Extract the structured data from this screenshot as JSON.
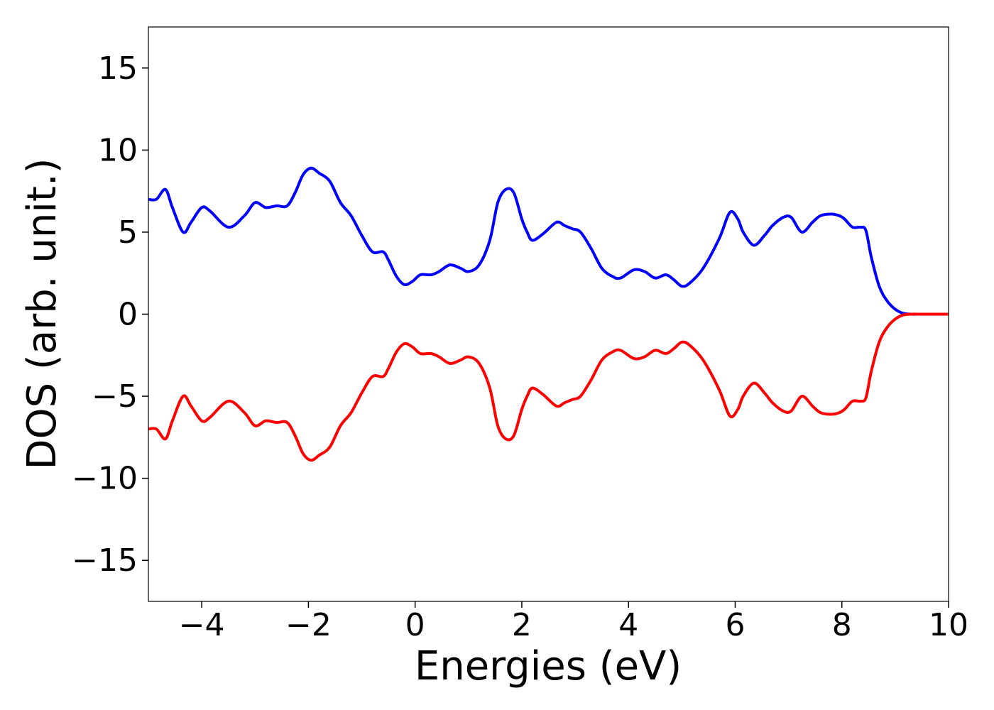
{
  "chart_data": {
    "type": "line",
    "title": "",
    "xlabel": "Energies (eV)",
    "ylabel": "DOS (arb. unit.)",
    "xlim": [
      -5,
      10
    ],
    "ylim": [
      -17.5,
      17.5
    ],
    "xticks": [
      -4,
      -2,
      0,
      2,
      4,
      6,
      8,
      10
    ],
    "xtick_labels": [
      "−4",
      "−2",
      "0",
      "2",
      "4",
      "6",
      "8",
      "10"
    ],
    "yticks": [
      -15,
      -10,
      -5,
      0,
      5,
      10,
      15
    ],
    "ytick_labels": [
      "−15",
      "−10",
      "−5",
      "0",
      "5",
      "10",
      "15"
    ],
    "grid": false,
    "legend": "none",
    "series": [
      {
        "color": "#0000ff",
        "x": [
          -5.0,
          -4.85,
          -4.68,
          -4.55,
          -4.35,
          -4.2,
          -4.0,
          -3.85,
          -3.5,
          -3.2,
          -3.0,
          -2.8,
          -2.6,
          -2.4,
          -2.25,
          -2.1,
          -1.95,
          -1.8,
          -1.6,
          -1.4,
          -1.2,
          -1.0,
          -0.8,
          -0.6,
          -0.5,
          -0.35,
          -0.2,
          -0.05,
          0.1,
          0.3,
          0.45,
          0.65,
          0.85,
          1.0,
          1.2,
          1.4,
          1.55,
          1.7,
          1.85,
          2.0,
          2.1,
          2.2,
          2.4,
          2.65,
          2.8,
          2.95,
          3.1,
          3.3,
          3.5,
          3.7,
          3.85,
          4.1,
          4.3,
          4.5,
          4.7,
          4.85,
          5.0,
          5.15,
          5.4,
          5.7,
          5.9,
          6.05,
          6.15,
          6.35,
          6.55,
          6.7,
          6.9,
          7.05,
          7.25,
          7.45,
          7.6,
          7.8,
          7.95,
          8.05,
          8.2,
          8.35,
          8.45,
          8.55,
          8.7,
          8.85,
          9.0,
          9.15,
          9.3,
          9.5,
          10.0
        ],
        "y": [
          7.0,
          7.0,
          7.6,
          6.5,
          5.0,
          5.6,
          6.5,
          6.3,
          5.3,
          6.0,
          6.8,
          6.5,
          6.6,
          6.6,
          7.4,
          8.5,
          8.9,
          8.6,
          8.1,
          6.8,
          6.0,
          4.8,
          3.8,
          3.8,
          3.3,
          2.3,
          1.8,
          2.0,
          2.4,
          2.4,
          2.6,
          3.0,
          2.8,
          2.6,
          3.0,
          4.5,
          6.8,
          7.6,
          7.4,
          5.8,
          5.0,
          4.5,
          4.9,
          5.6,
          5.4,
          5.2,
          5.0,
          4.0,
          2.8,
          2.3,
          2.2,
          2.7,
          2.6,
          2.2,
          2.4,
          2.1,
          1.7,
          1.9,
          2.8,
          4.6,
          6.2,
          5.8,
          5.0,
          4.2,
          4.8,
          5.4,
          5.9,
          5.9,
          5.0,
          5.6,
          6.0,
          6.1,
          6.0,
          5.8,
          5.3,
          5.3,
          5.1,
          3.5,
          1.7,
          0.8,
          0.3,
          0.05,
          0.0,
          0.0,
          0.0
        ]
      },
      {
        "color": "#ff0000",
        "x": [
          -5.0,
          -4.85,
          -4.68,
          -4.55,
          -4.35,
          -4.2,
          -4.0,
          -3.85,
          -3.5,
          -3.2,
          -3.0,
          -2.8,
          -2.6,
          -2.4,
          -2.25,
          -2.1,
          -1.95,
          -1.8,
          -1.6,
          -1.4,
          -1.2,
          -1.0,
          -0.8,
          -0.6,
          -0.5,
          -0.35,
          -0.2,
          -0.05,
          0.1,
          0.3,
          0.45,
          0.65,
          0.85,
          1.0,
          1.2,
          1.4,
          1.55,
          1.7,
          1.85,
          2.0,
          2.1,
          2.2,
          2.4,
          2.65,
          2.8,
          2.95,
          3.1,
          3.3,
          3.5,
          3.7,
          3.85,
          4.1,
          4.3,
          4.5,
          4.7,
          4.85,
          5.0,
          5.15,
          5.4,
          5.7,
          5.9,
          6.05,
          6.15,
          6.35,
          6.55,
          6.7,
          6.9,
          7.05,
          7.25,
          7.45,
          7.6,
          7.8,
          7.95,
          8.05,
          8.2,
          8.35,
          8.45,
          8.55,
          8.7,
          8.85,
          9.0,
          9.15,
          9.3,
          9.5,
          10.0
        ],
        "y": [
          -7.0,
          -7.0,
          -7.6,
          -6.5,
          -5.0,
          -5.6,
          -6.5,
          -6.3,
          -5.3,
          -6.0,
          -6.8,
          -6.5,
          -6.6,
          -6.6,
          -7.4,
          -8.5,
          -8.9,
          -8.6,
          -8.1,
          -6.8,
          -6.0,
          -4.8,
          -3.8,
          -3.8,
          -3.3,
          -2.3,
          -1.8,
          -2.0,
          -2.4,
          -2.4,
          -2.6,
          -3.0,
          -2.8,
          -2.6,
          -3.0,
          -4.5,
          -6.8,
          -7.6,
          -7.4,
          -5.8,
          -5.0,
          -4.5,
          -4.9,
          -5.6,
          -5.4,
          -5.2,
          -5.0,
          -4.0,
          -2.8,
          -2.3,
          -2.2,
          -2.7,
          -2.6,
          -2.2,
          -2.4,
          -2.1,
          -1.7,
          -1.9,
          -2.8,
          -4.6,
          -6.2,
          -5.8,
          -5.0,
          -4.2,
          -4.8,
          -5.4,
          -5.9,
          -5.9,
          -5.0,
          -5.6,
          -6.0,
          -6.1,
          -6.0,
          -5.8,
          -5.3,
          -5.3,
          -5.1,
          -3.5,
          -1.7,
          -0.8,
          -0.3,
          -0.05,
          0.0,
          0.0,
          0.0
        ]
      }
    ]
  }
}
